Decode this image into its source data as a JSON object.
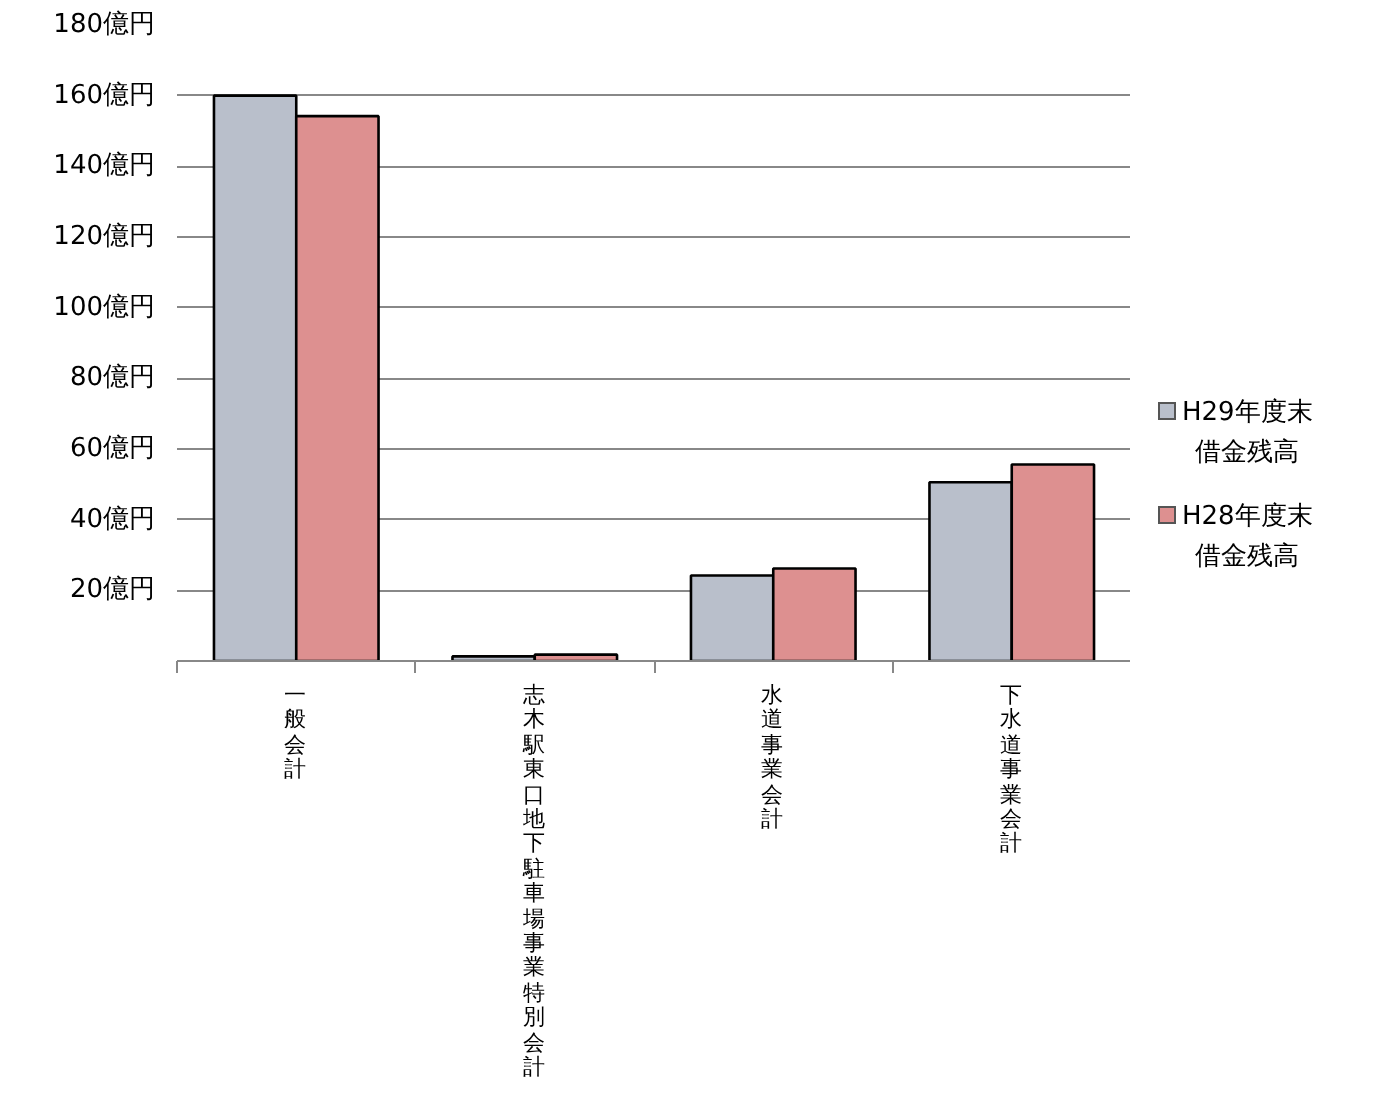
{
  "chart_data": {
    "type": "bar",
    "categories": [
      "一般会計",
      "志木駅東口地下駐車場事業特別会計",
      "水道事業会計",
      "下水道事業会計"
    ],
    "series": [
      {
        "name": "H29年度末借金残高",
        "color": "#b9bfcb",
        "values": [
          160,
          1.3,
          24.2,
          50.6
        ]
      },
      {
        "name": "H28年度末借金残高",
        "color": "#dd9090",
        "values": [
          154.2,
          1.8,
          26.2,
          55.6
        ]
      }
    ],
    "ylim": [
      0,
      180
    ],
    "yticks": [
      {
        "value": 0,
        "label": null
      },
      {
        "value": 20,
        "label": "20億円"
      },
      {
        "value": 40,
        "label": "40億円"
      },
      {
        "value": 60,
        "label": "60億円"
      },
      {
        "value": 80,
        "label": "80億円"
      },
      {
        "value": 100,
        "label": "100億円"
      },
      {
        "value": 120,
        "label": "120億円"
      },
      {
        "value": 140,
        "label": "140億円"
      },
      {
        "value": 160,
        "label": "160億円"
      },
      {
        "value": 180,
        "label": "180億円"
      }
    ],
    "grid": "y",
    "legend": "right"
  }
}
